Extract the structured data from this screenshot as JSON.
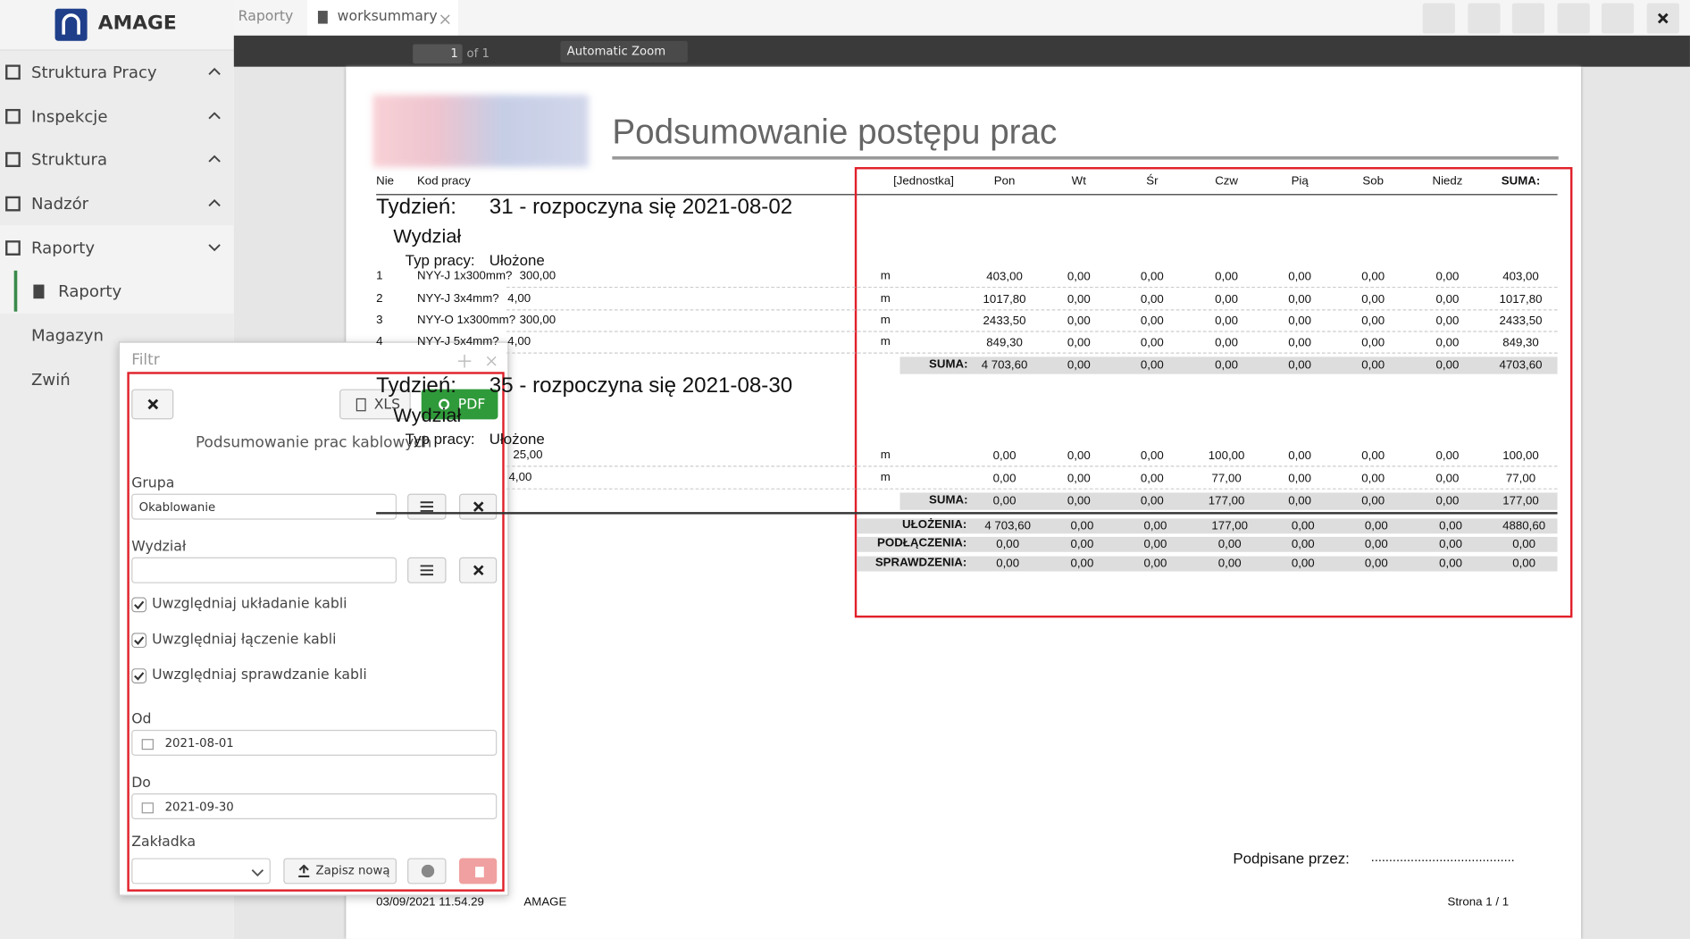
{
  "sidebar": {
    "brand": "AMAGE",
    "menu": [
      "Struktura Pracy",
      "Inspekcje",
      "Struktura",
      "Nadzór",
      "Raporty"
    ],
    "submenu": "Raporty",
    "menu_after": [
      "Magazyn",
      "Zwiń"
    ]
  },
  "tabs": [
    "Raporty",
    "worksummary"
  ],
  "pdf_toolbar": {
    "page": "1",
    "page_count": "of 1",
    "zoom": "Automatic Zoom"
  },
  "document": {
    "title": "Podsumowanie postępu prac",
    "header": {
      "no": "Nie",
      "code": "Kod pracy",
      "unit": "[Jednostka]",
      "days": [
        "Pon",
        "Wt",
        "Śr",
        "Czw",
        "Pią",
        "Sob",
        "Niedz"
      ],
      "sum": "SUMA:"
    },
    "weeks": [
      {
        "label": "Tydzień:",
        "week": "31 - rozpoczyna się 2021-08-02",
        "department": "Wydział",
        "work_type_label": "Typ pracy:",
        "work_type": "Ułożone",
        "rows": [
          {
            "no": "1",
            "code": "NYY-J 1x300mm?",
            "qty": "300,00",
            "unit": "m",
            "values": [
              "403,00",
              "0,00",
              "0,00",
              "0,00",
              "0,00",
              "0,00",
              "0,00",
              "403,00"
            ]
          },
          {
            "no": "2",
            "code": "NYY-J 3x4mm?",
            "qty": "4,00",
            "unit": "m",
            "values": [
              "1017,80",
              "0,00",
              "0,00",
              "0,00",
              "0,00",
              "0,00",
              "0,00",
              "1017,80"
            ]
          },
          {
            "no": "3",
            "code": "NYY-O 1x300mm?",
            "qty": "300,00",
            "unit": "m",
            "values": [
              "2433,50",
              "0,00",
              "0,00",
              "0,00",
              "0,00",
              "0,00",
              "0,00",
              "2433,50"
            ]
          },
          {
            "no": "4",
            "code": "NYY-J 5x4mm?",
            "qty": "4,00",
            "unit": "m",
            "values": [
              "849,30",
              "0,00",
              "0,00",
              "0,00",
              "0,00",
              "0,00",
              "0,00",
              "849,30"
            ]
          }
        ],
        "sum_label": "SUMA:",
        "sum": [
          "4 703,60",
          "0,00",
          "0,00",
          "0,00",
          "0,00",
          "0,00",
          "0,00",
          "4703,60"
        ]
      },
      {
        "label": "Tydzień:",
        "week": "35 - rozpoczyna się 2021-08-30",
        "department": "Wydział",
        "work_type_label": "Typ pracy:",
        "work_type": "Ułożone",
        "rows": [
          {
            "qty": "25,00",
            "unit": "m",
            "values": [
              "0,00",
              "0,00",
              "0,00",
              "100,00",
              "0,00",
              "0,00",
              "0,00",
              "100,00"
            ]
          },
          {
            "qty": "4,00",
            "unit": "m",
            "values": [
              "0,00",
              "0,00",
              "0,00",
              "77,00",
              "0,00",
              "0,00",
              "0,00",
              "77,00"
            ]
          }
        ],
        "sum_label": "SUMA:",
        "sum": [
          "0,00",
          "0,00",
          "0,00",
          "177,00",
          "0,00",
          "0,00",
          "0,00",
          "177,00"
        ]
      }
    ],
    "totals": [
      {
        "label": "UŁOŻENIA:",
        "values": [
          "4 703,60",
          "0,00",
          "0,00",
          "177,00",
          "0,00",
          "0,00",
          "0,00",
          "4880,60"
        ]
      },
      {
        "label": "PODŁĄCZENIA:",
        "values": [
          "0,00",
          "0,00",
          "0,00",
          "0,00",
          "0,00",
          "0,00",
          "0,00",
          "0,00"
        ]
      },
      {
        "label": "SPRAWDZENIA:",
        "values": [
          "0,00",
          "0,00",
          "0,00",
          "0,00",
          "0,00",
          "0,00",
          "0,00",
          "0,00"
        ]
      }
    ],
    "signed_label": "Podpisane przez:",
    "signed_line": "........................................",
    "footer": {
      "timestamp": "03/09/2021 11.54.29",
      "company": "AMAGE",
      "page": "Strona 1 / 1"
    }
  },
  "dialog": {
    "title": "Filtr",
    "xls": "XLS",
    "pdf": "PDF",
    "subtitle": "Podsumowanie prac kablowych",
    "group_label": "Grupa",
    "group_value": "Okablowanie",
    "department_label": "Wydział",
    "checkboxes": [
      "Uwzględniaj układanie kabli",
      "Uwzględniaj łączenie kabli",
      "Uwzględniaj sprawdzanie kabli"
    ],
    "from_label": "Od",
    "from_value": "2021-08-01",
    "to_label": "Do",
    "to_value": "2021-09-30",
    "bookmark_label": "Zakładka",
    "save_new": "Zapisz nową"
  }
}
